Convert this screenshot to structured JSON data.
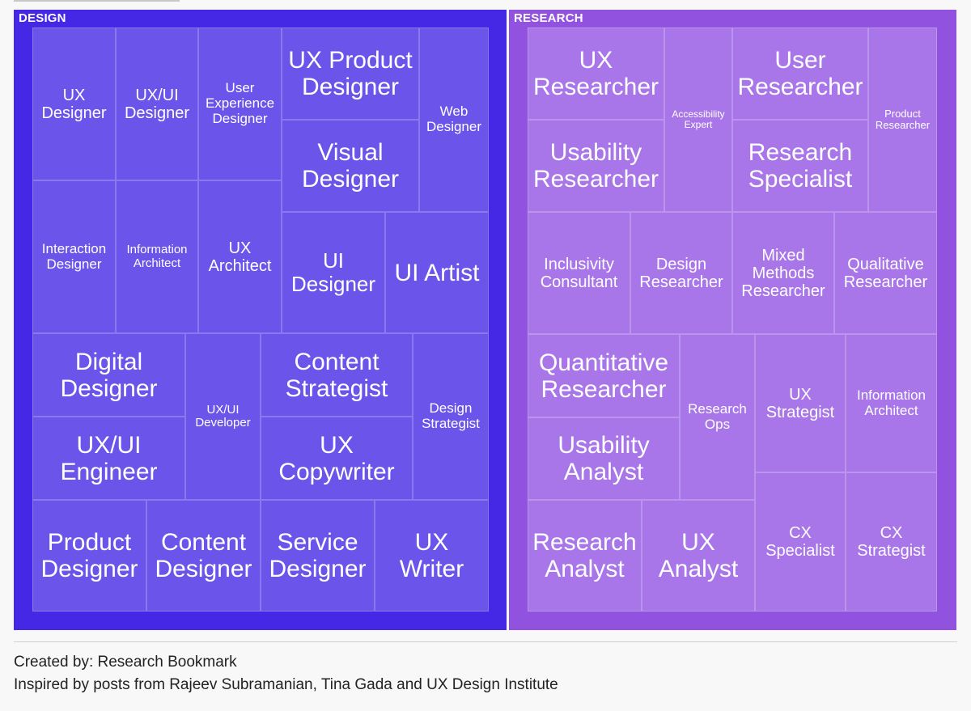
{
  "chart_data": {
    "type": "treemap",
    "colors": {
      "design_outer": "#4527e6",
      "design_cell": "#6a54ea",
      "research_outer": "#9152e0",
      "research_cell": "#a876e9"
    },
    "groups": [
      {
        "name": "DESIGN",
        "items": [
          "UX\nDesigner",
          "UX/UI\nDesigner",
          "User\nExperience\nDesigner",
          "UX Product\nDesigner",
          "Visual\nDesigner",
          "Web\nDesigner",
          "Interaction\nDesigner",
          "Information\nArchitect",
          "UX\nArchitect",
          "UI\nDesigner",
          "UI Artist",
          "Digital\nDesigner",
          "UX/UI\nEngineer",
          "UX/UI\nDeveloper",
          "Content\nStrategist",
          "UX\nCopywriter",
          "Design\nStrategist",
          "Product\nDesigner",
          "Content\nDesigner",
          "Service\nDesigner",
          "UX\nWriter"
        ]
      },
      {
        "name": "RESEARCH",
        "items": [
          "UX\nResearcher",
          "Usability\nResearcher",
          "Accessibility\nExpert",
          "User\nResearcher",
          "Research\nSpecialist",
          "Product\nResearcher",
          "Inclusivity\nConsultant",
          "Design\nResearcher",
          "Mixed\nMethods\nResearcher",
          "Qualitative\nResearcher",
          "Quantitative\nResearcher",
          "Usability\nAnalyst",
          "Research\nOps",
          "UX\nStrategist",
          "Information\nArchitect",
          "Research\nAnalyst",
          "UX\nAnalyst",
          "CX\nSpecialist",
          "CX\nStrategist"
        ]
      }
    ]
  },
  "footer": {
    "created_by": "Created by: Research Bookmark",
    "inspired_by": "Inspired by posts from Rajeev Subramanian, Tina Gada and UX Design Institute"
  }
}
